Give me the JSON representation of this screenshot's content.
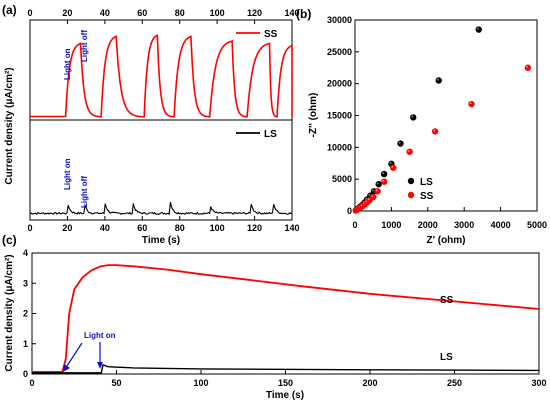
{
  "chart_data": [
    {
      "panel": "(a)",
      "type": "line",
      "xlabel": "Time (s)",
      "ylabel": "Current density (μA/cm²)",
      "xlim": [
        0,
        140
      ],
      "xticks": [
        0,
        20,
        40,
        60,
        80,
        100,
        120,
        140
      ],
      "grid": false,
      "subplots": [
        {
          "position": "top",
          "legend": {
            "label": "SS",
            "color": "#ff0000",
            "placement": "top-right"
          },
          "annotations": [
            "Light on",
            "Light off"
          ],
          "series": [
            {
              "name": "SS",
              "color": "#ff0000",
              "cycles": [
                {
                  "on": 19,
                  "off": 27,
                  "peak": 3.2
                },
                {
                  "on": 38,
                  "off": 46,
                  "peak": 3.5
                },
                {
                  "on": 61,
                  "off": 68,
                  "peak": 3.55
                },
                {
                  "on": 77,
                  "off": 86,
                  "peak": 3.5
                },
                {
                  "on": 96,
                  "off": 108,
                  "peak": 3.3
                },
                {
                  "on": 116,
                  "off": 128,
                  "peak": 3.2
                },
                {
                  "on": 132,
                  "off": 140,
                  "peak": 3.1
                }
              ]
            }
          ]
        },
        {
          "position": "bottom",
          "legend": {
            "label": "LS",
            "color": "#000000",
            "placement": "top-right"
          },
          "annotations": [
            "Light on",
            "Light off"
          ],
          "series": [
            {
              "name": "LS",
              "color": "#000000",
              "spikes_x": [
                20,
                29,
                40,
                55,
                75,
                96,
                118,
                130
              ]
            }
          ]
        }
      ]
    },
    {
      "panel": "(b)",
      "type": "scatter",
      "xlabel": "Z' (ohm)",
      "ylabel": "-Z'' (ohm)",
      "xlim": [
        0,
        5000
      ],
      "ylim": [
        0,
        30000
      ],
      "xticks": [
        0,
        1000,
        2000,
        3000,
        4000,
        5000
      ],
      "yticks": [
        0,
        5000,
        10000,
        15000,
        20000,
        25000,
        30000
      ],
      "legend_placement": "lower-right",
      "series": [
        {
          "name": "LS",
          "color": "#000000",
          "x": [
            30,
            60,
            100,
            150,
            200,
            260,
            330,
            420,
            520,
            650,
            800,
            1000,
            1250,
            1600,
            2300,
            3400
          ],
          "y": [
            150,
            280,
            450,
            700,
            950,
            1300,
            1800,
            2400,
            3100,
            4200,
            5800,
            7400,
            10600,
            14700,
            20500,
            28500
          ]
        },
        {
          "name": "SS",
          "color": "#ff0000",
          "x": [
            20,
            50,
            80,
            120,
            160,
            210,
            270,
            330,
            400,
            500,
            620,
            800,
            1050,
            1500,
            2200,
            3200,
            4750
          ],
          "y": [
            80,
            180,
            280,
            420,
            580,
            780,
            1050,
            1350,
            1700,
            2200,
            3100,
            4600,
            6800,
            9300,
            12500,
            16800,
            22500
          ]
        }
      ]
    },
    {
      "panel": "(c)",
      "type": "line",
      "xlabel": "Time (s)",
      "ylabel": "Current density (μA/cm²)",
      "xlim": [
        0,
        300
      ],
      "ylim": [
        0,
        4
      ],
      "xticks": [
        0,
        50,
        100,
        150,
        200,
        250,
        300
      ],
      "yticks": [
        0,
        1,
        2,
        3,
        4
      ],
      "annotations": [
        "Light on"
      ],
      "series": [
        {
          "name": "SS",
          "color": "#ff0000",
          "x": [
            0,
            18,
            20,
            22,
            25,
            30,
            35,
            40,
            45,
            50,
            60,
            80,
            100,
            130,
            160,
            200,
            250,
            300
          ],
          "y": [
            0.07,
            0.07,
            0.5,
            2.0,
            2.8,
            3.2,
            3.42,
            3.55,
            3.6,
            3.6,
            3.56,
            3.45,
            3.3,
            3.1,
            2.9,
            2.65,
            2.4,
            2.15
          ]
        },
        {
          "name": "LS",
          "color": "#000000",
          "x": [
            0,
            41,
            42,
            45,
            60,
            100,
            200,
            300
          ],
          "y": [
            0.04,
            0.04,
            0.3,
            0.24,
            0.2,
            0.17,
            0.14,
            0.12
          ]
        }
      ]
    }
  ]
}
